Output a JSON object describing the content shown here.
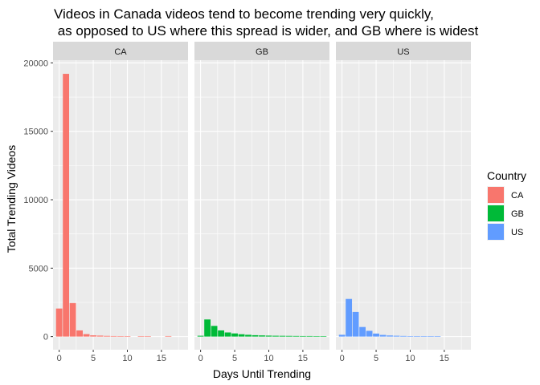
{
  "chart_data": {
    "type": "bar",
    "title_line1": "Videos in Canada videos tend to become trending very quickly,",
    "title_line2": " as opposed to US where this spread is wider, and GB where is widest",
    "xlabel": "Days Until Trending",
    "ylabel": "Total Trending Videos",
    "xlim": [
      -0.9,
      18.9
    ],
    "ylim": [
      -960,
      20200
    ],
    "x_ticks": [
      0,
      5,
      10,
      15
    ],
    "y_ticks": [
      0,
      5000,
      10000,
      15000,
      20000
    ],
    "grid": true,
    "legend": {
      "title": "Country",
      "placement": "right",
      "entries": [
        {
          "label": "CA",
          "color": "#F8766D"
        },
        {
          "label": "GB",
          "color": "#00BA38"
        },
        {
          "label": "US",
          "color": "#619CFF"
        }
      ]
    },
    "panels": [
      {
        "name": "CA",
        "color": "#F8766D",
        "x": [
          0,
          1,
          2,
          3,
          4,
          5,
          6,
          7,
          8,
          9,
          10,
          11,
          12,
          13,
          14,
          15,
          16,
          17
        ],
        "values": [
          2050,
          19200,
          2450,
          450,
          180,
          90,
          70,
          50,
          40,
          35,
          30,
          0,
          30,
          25,
          0,
          0,
          40,
          0
        ]
      },
      {
        "name": "GB",
        "color": "#00BA38",
        "x": [
          0,
          1,
          2,
          3,
          4,
          5,
          6,
          7,
          8,
          9,
          10,
          11,
          12,
          13,
          14,
          15,
          16,
          17,
          18
        ],
        "values": [
          60,
          1250,
          780,
          450,
          300,
          230,
          170,
          130,
          100,
          85,
          70,
          60,
          55,
          50,
          45,
          40,
          40,
          35,
          30
        ]
      },
      {
        "name": "US",
        "color": "#619CFF",
        "x": [
          0,
          1,
          2,
          3,
          4,
          5,
          6,
          7,
          8,
          9,
          10,
          11,
          12,
          13,
          14,
          15,
          16,
          17
        ],
        "values": [
          130,
          2750,
          1800,
          700,
          420,
          220,
          120,
          80,
          60,
          45,
          35,
          30,
          25,
          20,
          15,
          0,
          0,
          0
        ]
      }
    ]
  }
}
